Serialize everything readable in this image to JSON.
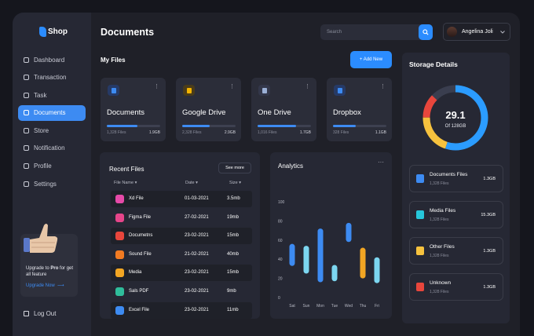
{
  "app": {
    "logo_text": "Shop"
  },
  "sidebar": {
    "items": [
      {
        "label": "Dashboard",
        "icon": "dashboard-icon"
      },
      {
        "label": "Transaction",
        "icon": "transaction-icon"
      },
      {
        "label": "Task",
        "icon": "task-icon"
      },
      {
        "label": "Documents",
        "icon": "documents-icon"
      },
      {
        "label": "Store",
        "icon": "store-icon"
      },
      {
        "label": "Notification",
        "icon": "bell-icon"
      },
      {
        "label": "Profile",
        "icon": "user-icon"
      },
      {
        "label": "Settings",
        "icon": "gear-icon"
      }
    ],
    "active": "Documents",
    "upgrade": {
      "text_a": "Upgrade to ",
      "text_pro": "Pro",
      "text_b": " for get all feature",
      "link": "Upgrade Now"
    },
    "logout": "Log Out"
  },
  "header": {
    "title": "Documents",
    "search_placeholder": "Search",
    "user_name": "Angelina Joli"
  },
  "myfiles": {
    "title": "My Files",
    "add_label": "+ Add New",
    "cards": [
      {
        "name": "Documents",
        "count": "1,328 Files",
        "size": "1.9GB",
        "fraction": 0.58,
        "icon": "document-icon",
        "icon_bg": "#263a66",
        "icon_color": "#3d8bf2"
      },
      {
        "name": "Google Drive",
        "count": "2,328 Files",
        "size": "2.9GB",
        "fraction": 0.52,
        "icon": "drive-icon",
        "icon_bg": "#4a3c1a",
        "icon_color": "#f4b400"
      },
      {
        "name": "One Drive",
        "count": "1,016 Files",
        "size": "1.7GB",
        "fraction": 0.72,
        "icon": "cloud-icon",
        "icon_bg": "#33374a",
        "icon_color": "#9bb0d6"
      },
      {
        "name": "Dropbox",
        "count": "328 Files",
        "size": "1.1GB",
        "fraction": 0.42,
        "icon": "dropbox-icon",
        "icon_bg": "#263a66",
        "icon_color": "#3d8bf2"
      }
    ]
  },
  "recent": {
    "title": "Recent Files",
    "see_more": "See more",
    "headers": {
      "name": "File Name",
      "date": "Date",
      "size": "Size"
    },
    "rows": [
      {
        "name": "Xd File",
        "date": "01-03-2021",
        "size": "3.5mb",
        "color": "#e64aa8"
      },
      {
        "name": "Figma File",
        "date": "27-02-2021",
        "size": "19mb",
        "color": "#e6458a"
      },
      {
        "name": "Documetns",
        "date": "23-02-2021",
        "size": "15mb",
        "color": "#e8463c"
      },
      {
        "name": "Sound File",
        "date": "21-02-2021",
        "size": "40mb",
        "color": "#f27b22"
      },
      {
        "name": "Media",
        "date": "23-02-2021",
        "size": "15mb",
        "color": "#f2a623"
      },
      {
        "name": "Sals PDF",
        "date": "23-02-2021",
        "size": "9mb",
        "color": "#2fbd9b"
      },
      {
        "name": "Excel File",
        "date": "23-02-2021",
        "size": "11mb",
        "color": "#3d8bf2"
      }
    ]
  },
  "analytics": {
    "title": "Analytics"
  },
  "chart_data": {
    "type": "bar",
    "title": "Analytics",
    "categories": [
      "Sat",
      "Sun",
      "Mon",
      "Tue",
      "Wed",
      "Thu",
      "Fri"
    ],
    "y_ticks": [
      0,
      20,
      40,
      60,
      80,
      100
    ],
    "ylim": [
      0,
      100
    ],
    "ranges": [
      [
        33,
        56
      ],
      [
        25,
        54
      ],
      [
        16,
        72
      ],
      [
        17,
        34
      ],
      [
        58,
        78
      ],
      [
        20,
        52
      ],
      [
        15,
        42
      ]
    ],
    "colors": [
      "#3d8bf2",
      "#7cd6f0",
      "#3d8bf2",
      "#7cd6f0",
      "#3d8bf2",
      "#f2a623",
      "#7cd6f0"
    ]
  },
  "storage": {
    "title": "Storage Details",
    "used": "29.1",
    "total": "Of 128GB",
    "ring": [
      {
        "fraction": 0.55,
        "color": "#2b9cff"
      },
      {
        "fraction": 0.2,
        "color": "#f6c23e"
      },
      {
        "fraction": 0.12,
        "color": "#e8463c"
      },
      {
        "fraction": 0.13,
        "color": "#3a3e4f"
      }
    ],
    "items": [
      {
        "name": "Documents Files",
        "count": "1,328 Files",
        "size": "1.3GB",
        "color": "#3d8bf2",
        "icon": "document-icon"
      },
      {
        "name": "Media Files",
        "count": "1,328 Files",
        "size": "15.3GB",
        "color": "#26c6da",
        "icon": "media-icon"
      },
      {
        "name": "Other Files",
        "count": "1,328 Files",
        "size": "1.3GB",
        "color": "#f6c23e",
        "icon": "folder-icon"
      },
      {
        "name": "Unknown",
        "count": "1,328 Files",
        "size": "1.3GB",
        "color": "#e8463c",
        "icon": "unknown-file-icon"
      }
    ]
  }
}
